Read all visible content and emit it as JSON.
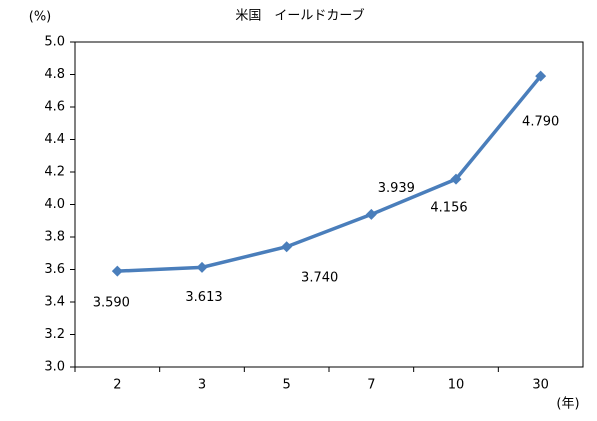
{
  "chart_data": {
    "type": "line",
    "title": "米国　イールドカーブ",
    "y_label": "(%)",
    "x_label": "(年)",
    "categories": [
      "2",
      "3",
      "5",
      "7",
      "10",
      "30"
    ],
    "series": [
      {
        "name": "米国",
        "color": "#4a7ebb",
        "values": [
          3.59,
          3.613,
          3.74,
          3.939,
          4.156,
          4.79
        ],
        "value_labels": [
          "3.590",
          "3.613",
          "3.740",
          "3.939",
          "4.156",
          "4.790"
        ]
      }
    ],
    "ylim": [
      3.0,
      5.0
    ],
    "yticks": [
      {
        "value": 3.0,
        "label": "3.0"
      },
      3.2,
      3.4,
      3.6,
      3.8,
      {
        "value": 4.0,
        "label": "4.0"
      },
      4.2,
      4.4,
      4.6,
      4.8,
      {
        "value": 5.0,
        "label": "5.0"
      }
    ],
    "grid": false,
    "legend": false
  }
}
